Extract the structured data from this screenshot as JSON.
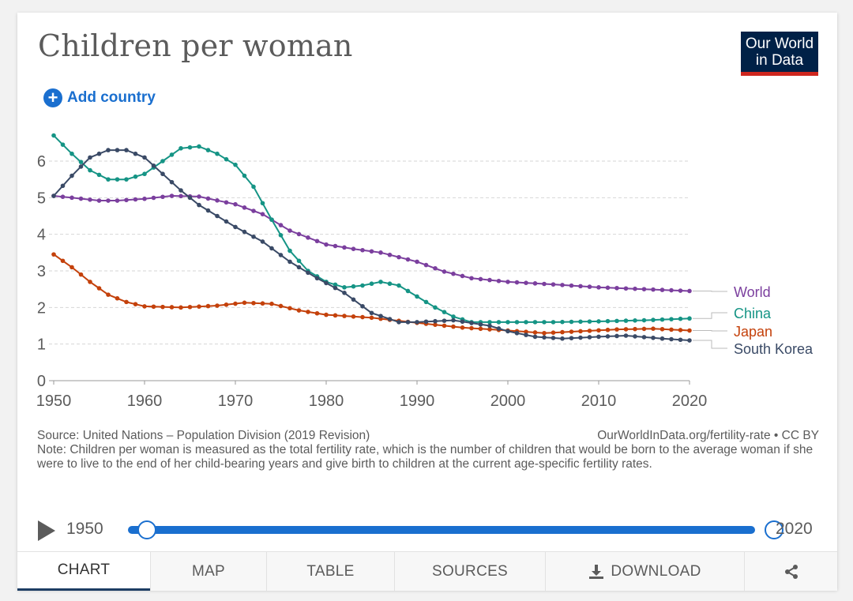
{
  "header": {
    "title": "Children per woman",
    "logo_line1": "Our World",
    "logo_line2": "in Data",
    "add_country_label": "Add country"
  },
  "chart_data": {
    "type": "line",
    "title": "Children per woman",
    "xlabel": "",
    "ylabel": "",
    "xlim": [
      1950,
      2020
    ],
    "ylim": [
      0,
      6
    ],
    "x_ticks": [
      1950,
      1960,
      1970,
      1980,
      1990,
      2000,
      2010,
      2020
    ],
    "y_ticks": [
      0,
      1,
      2,
      3,
      4,
      5,
      6
    ],
    "grid": "horizontal dashed",
    "series": [
      {
        "name": "World",
        "color": "#7b3f9e",
        "points": [
          [
            1950,
            5.05
          ],
          [
            1952,
            5.0
          ],
          [
            1955,
            4.92
          ],
          [
            1957,
            4.92
          ],
          [
            1960,
            4.97
          ],
          [
            1963,
            5.05
          ],
          [
            1966,
            5.03
          ],
          [
            1970,
            4.82
          ],
          [
            1973,
            4.55
          ],
          [
            1976,
            4.1
          ],
          [
            1980,
            3.72
          ],
          [
            1983,
            3.6
          ],
          [
            1986,
            3.5
          ],
          [
            1990,
            3.25
          ],
          [
            1993,
            2.98
          ],
          [
            1996,
            2.8
          ],
          [
            2000,
            2.7
          ],
          [
            2005,
            2.63
          ],
          [
            2010,
            2.55
          ],
          [
            2015,
            2.5
          ],
          [
            2020,
            2.45
          ]
        ]
      },
      {
        "name": "China",
        "color": "#159485",
        "points": [
          [
            1950,
            6.7
          ],
          [
            1952,
            6.2
          ],
          [
            1954,
            5.75
          ],
          [
            1956,
            5.5
          ],
          [
            1958,
            5.5
          ],
          [
            1960,
            5.65
          ],
          [
            1962,
            6.0
          ],
          [
            1964,
            6.35
          ],
          [
            1966,
            6.4
          ],
          [
            1968,
            6.2
          ],
          [
            1970,
            5.9
          ],
          [
            1972,
            5.3
          ],
          [
            1974,
            4.4
          ],
          [
            1976,
            3.55
          ],
          [
            1978,
            3.0
          ],
          [
            1980,
            2.7
          ],
          [
            1982,
            2.55
          ],
          [
            1984,
            2.6
          ],
          [
            1986,
            2.7
          ],
          [
            1988,
            2.6
          ],
          [
            1990,
            2.3
          ],
          [
            1992,
            2.0
          ],
          [
            1994,
            1.75
          ],
          [
            1996,
            1.6
          ],
          [
            2000,
            1.6
          ],
          [
            2005,
            1.6
          ],
          [
            2010,
            1.62
          ],
          [
            2015,
            1.65
          ],
          [
            2020,
            1.7
          ]
        ]
      },
      {
        "name": "Japan",
        "color": "#c4410b",
        "points": [
          [
            1950,
            3.45
          ],
          [
            1952,
            3.1
          ],
          [
            1954,
            2.7
          ],
          [
            1956,
            2.35
          ],
          [
            1958,
            2.15
          ],
          [
            1960,
            2.03
          ],
          [
            1964,
            2.0
          ],
          [
            1968,
            2.05
          ],
          [
            1971,
            2.13
          ],
          [
            1974,
            2.1
          ],
          [
            1977,
            1.92
          ],
          [
            1980,
            1.8
          ],
          [
            1985,
            1.72
          ],
          [
            1990,
            1.58
          ],
          [
            1995,
            1.45
          ],
          [
            2000,
            1.37
          ],
          [
            2004,
            1.3
          ],
          [
            2008,
            1.35
          ],
          [
            2012,
            1.4
          ],
          [
            2016,
            1.42
          ],
          [
            2020,
            1.37
          ]
        ]
      },
      {
        "name": "South Korea",
        "color": "#3a4a66",
        "points": [
          [
            1950,
            5.05
          ],
          [
            1952,
            5.6
          ],
          [
            1954,
            6.1
          ],
          [
            1956,
            6.3
          ],
          [
            1958,
            6.3
          ],
          [
            1960,
            6.1
          ],
          [
            1962,
            5.65
          ],
          [
            1964,
            5.2
          ],
          [
            1966,
            4.8
          ],
          [
            1968,
            4.5
          ],
          [
            1970,
            4.2
          ],
          [
            1973,
            3.8
          ],
          [
            1976,
            3.25
          ],
          [
            1979,
            2.8
          ],
          [
            1982,
            2.4
          ],
          [
            1985,
            1.85
          ],
          [
            1988,
            1.6
          ],
          [
            1990,
            1.6
          ],
          [
            1994,
            1.65
          ],
          [
            1998,
            1.5
          ],
          [
            2000,
            1.35
          ],
          [
            2003,
            1.2
          ],
          [
            2006,
            1.15
          ],
          [
            2010,
            1.2
          ],
          [
            2013,
            1.23
          ],
          [
            2017,
            1.15
          ],
          [
            2020,
            1.1
          ]
        ]
      }
    ],
    "legend_position": "right, at series ends"
  },
  "footer": {
    "source": "Source: United Nations – Population Division (2019 Revision)",
    "url": "OurWorldInData.org/fertility-rate • CC BY",
    "note": "Note: Children per woman is measured as the total fertility rate, which is the number of children that would be born to the average woman if she were to live to the end of her child-bearing years and give birth to children at the current age-specific fertility rates."
  },
  "timeline": {
    "start_year": "1950",
    "end_year": "2020"
  },
  "tabs": {
    "chart": "CHART",
    "map": "MAP",
    "table": "TABLE",
    "sources": "SOURCES",
    "download": "DOWNLOAD"
  },
  "colors": {
    "accent": "#1a6fcf",
    "logo_bg": "#002147",
    "logo_bar": "#ce261e"
  }
}
